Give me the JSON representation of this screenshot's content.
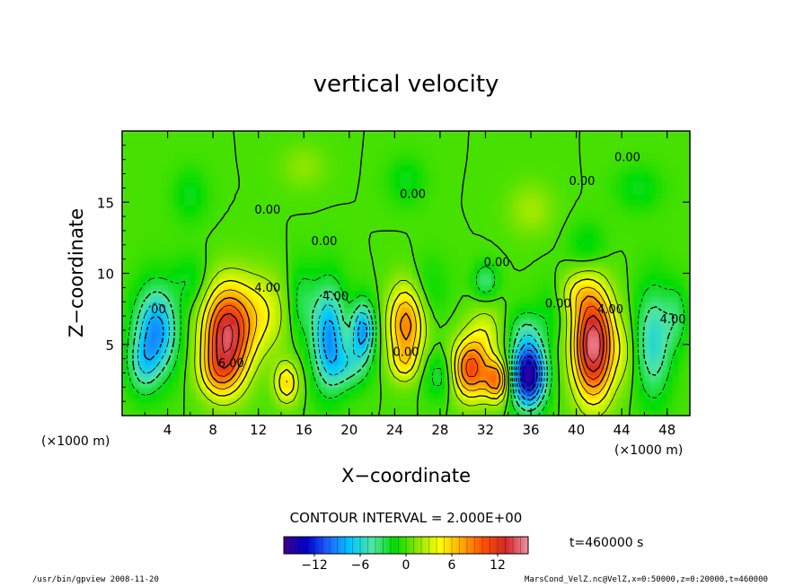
{
  "chart_data": {
    "type": "heatmap",
    "title": "vertical velocity",
    "xlabel": "X−coordinate",
    "ylabel": "Z−coordinate",
    "x_unit_left": "(×1000 m)",
    "x_unit_right": "(×1000 m)",
    "xlim": [
      0,
      50
    ],
    "ylim": [
      0,
      20
    ],
    "x_ticks": [
      4,
      8,
      12,
      16,
      20,
      24,
      28,
      32,
      36,
      40,
      44,
      48
    ],
    "y_ticks": [
      5,
      10,
      15
    ],
    "contour_interval_text": "CONTOUR INTERVAL = 2.000E+00",
    "time_text": "t=460000 s",
    "colorbar": {
      "range": [
        -16,
        16
      ],
      "ticks": [
        -12,
        -6,
        0,
        6,
        12
      ],
      "colors": [
        "#40008c",
        "#0000c8",
        "#1e64ff",
        "#00c8ff",
        "#50e6a0",
        "#00dc00",
        "#8ce600",
        "#ffff00",
        "#ffaa00",
        "#ff5000",
        "#d22828",
        "#f090a0"
      ]
    },
    "contour_labels": [
      {
        "text": "0.00",
        "x": 44.5,
        "y": 17.9
      },
      {
        "text": "0.00",
        "x": 25.6,
        "y": 15.3
      },
      {
        "text": "0.00",
        "x": 12.8,
        "y": 14.2
      },
      {
        "text": "0.00",
        "x": 17.8,
        "y": 12.0
      },
      {
        "text": "0.00",
        "x": 40.5,
        "y": 16.2
      },
      {
        "text": "0.00",
        "x": 33.0,
        "y": 10.5
      },
      {
        "text": "4.00",
        "x": 12.8,
        "y": 8.7
      },
      {
        "text": "4.00",
        "x": 18.8,
        "y": 8.1
      },
      {
        "text": "4.00",
        "x": 43.0,
        "y": 7.2
      },
      {
        "text": "0.00",
        "x": 25.0,
        "y": 4.2
      },
      {
        "text": "0.00",
        "x": 38.4,
        "y": 7.6
      },
      {
        "text": "4.00",
        "x": 48.5,
        "y": 6.5
      },
      {
        "text": "6.00",
        "x": 9.6,
        "y": 3.4
      },
      {
        "text": "00",
        "x": 3.2,
        "y": 7.2
      }
    ],
    "cells": [
      {
        "x": 3.0,
        "z": 6.0,
        "sx": 1.8,
        "sz": 3.0,
        "v": -9
      },
      {
        "x": 1.8,
        "z": 3.5,
        "sx": 1.3,
        "sz": 2.0,
        "v": -4
      },
      {
        "x": 9.2,
        "z": 5.6,
        "sx": 2.0,
        "sz": 3.3,
        "v": 14
      },
      {
        "x": 8.4,
        "z": 3.0,
        "sx": 1.6,
        "sz": 1.6,
        "v": 4
      },
      {
        "x": 12.2,
        "z": 7.2,
        "sx": 2.4,
        "sz": 2.8,
        "v": 4
      },
      {
        "x": 6.0,
        "z": 9.5,
        "sx": 1.5,
        "sz": 1.8,
        "v": -2
      },
      {
        "x": 14.5,
        "z": 2.3,
        "sx": 1.0,
        "sz": 1.4,
        "v": 6
      },
      {
        "x": 15.8,
        "z": 8.0,
        "sx": 1.2,
        "sz": 2.6,
        "v": -3
      },
      {
        "x": 18.2,
        "z": 5.6,
        "sx": 1.4,
        "sz": 3.5,
        "v": -9
      },
      {
        "x": 21.2,
        "z": 6.0,
        "sx": 1.0,
        "sz": 2.0,
        "v": -9
      },
      {
        "x": 20.0,
        "z": 3.5,
        "sx": 1.6,
        "sz": 1.6,
        "v": -4
      },
      {
        "x": 25.0,
        "z": 6.4,
        "sx": 1.5,
        "sz": 2.7,
        "v": 9
      },
      {
        "x": 24.8,
        "z": 3.6,
        "sx": 1.2,
        "sz": 1.2,
        "v": 3
      },
      {
        "x": 27.0,
        "z": 9.0,
        "sx": 1.8,
        "sz": 2.2,
        "v": -1.5
      },
      {
        "x": 28.0,
        "z": 2.8,
        "sx": 1.4,
        "sz": 1.6,
        "v": -3
      },
      {
        "x": 30.7,
        "z": 3.3,
        "sx": 1.6,
        "sz": 2.0,
        "v": 11
      },
      {
        "x": 33.0,
        "z": 2.5,
        "sx": 1.0,
        "sz": 1.4,
        "v": 9
      },
      {
        "x": 32.0,
        "z": 6.0,
        "sx": 1.6,
        "sz": 1.8,
        "v": 3
      },
      {
        "x": 35.8,
        "z": 2.9,
        "sx": 1.4,
        "sz": 2.2,
        "v": -16
      },
      {
        "x": 35.5,
        "z": 6.0,
        "sx": 1.6,
        "sz": 1.6,
        "v": -3
      },
      {
        "x": 41.5,
        "z": 5.0,
        "sx": 1.7,
        "sz": 3.6,
        "v": 16
      },
      {
        "x": 40.0,
        "z": 8.6,
        "sx": 1.6,
        "sz": 1.5,
        "v": 3
      },
      {
        "x": 37.8,
        "z": 7.5,
        "sx": 1.2,
        "sz": 2.2,
        "v": -1.5
      },
      {
        "x": 46.8,
        "z": 5.2,
        "sx": 1.5,
        "sz": 3.8,
        "v": -6
      },
      {
        "x": 48.8,
        "z": 7.0,
        "sx": 1.0,
        "sz": 2.2,
        "v": -3
      },
      {
        "x": 44.3,
        "z": 4.5,
        "sx": 1.0,
        "sz": 2.4,
        "v": 2
      },
      {
        "x": 25.0,
        "z": 16.5,
        "sx": 1.6,
        "sz": 1.6,
        "v": -2
      },
      {
        "x": 6.0,
        "z": 15.5,
        "sx": 1.5,
        "sz": 1.8,
        "v": -2
      },
      {
        "x": 36.0,
        "z": 14.5,
        "sx": 2.0,
        "sz": 1.8,
        "v": 2
      },
      {
        "x": 41.0,
        "z": 12.0,
        "sx": 1.6,
        "sz": 1.6,
        "v": -2
      },
      {
        "x": 45.5,
        "z": 16.0,
        "sx": 2.0,
        "sz": 1.5,
        "v": -2
      },
      {
        "x": 16.0,
        "z": 17.5,
        "sx": 2.0,
        "sz": 1.5,
        "v": 1.5
      },
      {
        "x": 32.0,
        "z": 9.5,
        "sx": 1.0,
        "sz": 1.2,
        "v": -4
      }
    ]
  },
  "footer": {
    "left": "/usr/bin/gpview  2008-11-20",
    "right": "MarsCond_VelZ.nc@VelZ,x=0:50000,z=0:20000,t=460000"
  }
}
